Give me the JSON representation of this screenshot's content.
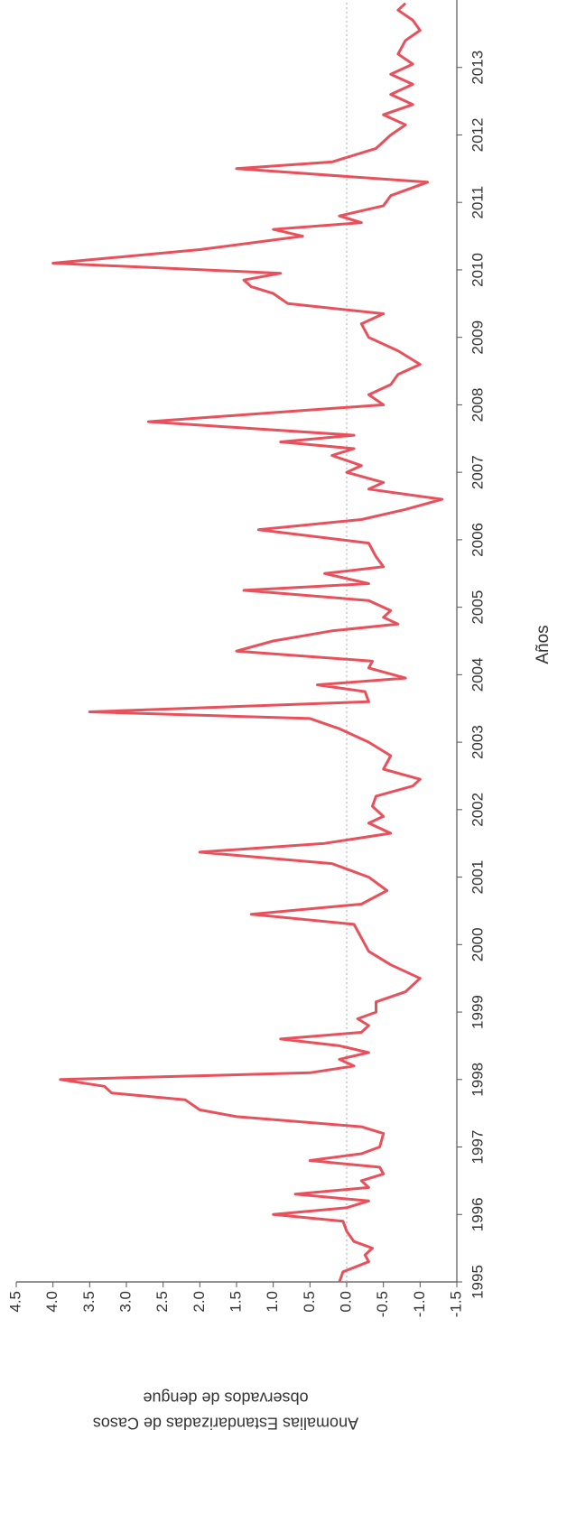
{
  "chart_data": {
    "type": "line",
    "xlabel": "Años",
    "ylabel": [
      "Anomalias Estandarizadas de Casos",
      "observados de dengue"
    ],
    "x": [
      1995.0,
      1995.15,
      1995.3,
      1995.4,
      1995.5,
      1995.6,
      1995.75,
      1995.9,
      1996.0,
      1996.1,
      1996.2,
      1996.3,
      1996.4,
      1996.5,
      1996.6,
      1996.7,
      1996.8,
      1996.9,
      1997.0,
      1997.2,
      1997.3,
      1997.45,
      1997.55,
      1997.7,
      1997.8,
      1997.9,
      1998.0,
      1998.1,
      1998.2,
      1998.3,
      1998.4,
      1998.5,
      1998.6,
      1998.7,
      1998.8,
      1998.9,
      1999.0,
      1999.15,
      1999.3,
      1999.5,
      1999.7,
      1999.9,
      2000.1,
      2000.3,
      2000.45,
      2000.6,
      2000.8,
      2001.0,
      2001.2,
      2001.37,
      2001.5,
      2001.65,
      2001.8,
      2001.9,
      2002.05,
      2002.2,
      2002.35,
      2002.45,
      2002.6,
      2002.8,
      2003.0,
      2003.2,
      2003.35,
      2003.45,
      2003.6,
      2003.75,
      2003.85,
      2003.95,
      2004.1,
      2004.2,
      2004.35,
      2004.5,
      2004.65,
      2004.75,
      2004.85,
      2004.95,
      2005.1,
      2005.25,
      2005.35,
      2005.5,
      2005.6,
      2005.75,
      2005.95,
      2006.15,
      2006.3,
      2006.45,
      2006.6,
      2006.75,
      2006.85,
      2007.0,
      2007.1,
      2007.25,
      2007.35,
      2007.45,
      2007.55,
      2007.75,
      2007.9,
      2008.0,
      2008.15,
      2008.3,
      2008.45,
      2008.6,
      2008.8,
      2009.0,
      2009.2,
      2009.35,
      2009.5,
      2009.65,
      2009.75,
      2009.85,
      2009.95,
      2010.1,
      2010.3,
      2010.5,
      2010.6,
      2010.7,
      2010.8,
      2010.95,
      2011.1,
      2011.3,
      2011.5,
      2011.6,
      2011.8,
      2012.0,
      2012.15,
      2012.3,
      2012.45,
      2012.6,
      2012.75,
      2012.9,
      2013.05,
      2013.2,
      2013.4,
      2013.55,
      2013.7,
      2013.85,
      2013.95
    ],
    "series": [
      {
        "color": "#e8505b",
        "values": [
          0.1,
          0.05,
          -0.3,
          -0.25,
          -0.35,
          -0.1,
          0.0,
          0.05,
          1.0,
          0.0,
          -0.3,
          0.7,
          -0.3,
          -0.2,
          -0.5,
          -0.45,
          0.5,
          -0.2,
          -0.45,
          -0.5,
          -0.2,
          1.5,
          2.0,
          2.2,
          3.2,
          3.3,
          3.9,
          0.5,
          -0.1,
          0.1,
          -0.3,
          0.1,
          0.9,
          -0.2,
          -0.3,
          -0.15,
          -0.4,
          -0.4,
          -0.8,
          -1.0,
          -0.6,
          -0.3,
          -0.2,
          -0.1,
          1.3,
          -0.2,
          -0.55,
          -0.3,
          0.2,
          2.0,
          0.3,
          -0.6,
          -0.3,
          -0.5,
          -0.35,
          -0.4,
          -0.9,
          -1.0,
          -0.5,
          -0.6,
          -0.3,
          0.1,
          0.5,
          3.5,
          -0.3,
          -0.25,
          0.4,
          -0.8,
          -0.3,
          -0.35,
          1.5,
          1.0,
          0.2,
          -0.7,
          -0.5,
          -0.6,
          -0.3,
          1.4,
          -0.3,
          0.3,
          -0.5,
          -0.4,
          -0.3,
          1.2,
          -0.2,
          -0.8,
          -1.3,
          -0.3,
          -0.5,
          0.0,
          -0.2,
          0.2,
          -0.1,
          0.9,
          -0.1,
          2.7,
          0.8,
          -0.5,
          -0.3,
          -0.6,
          -0.7,
          -1.0,
          -0.7,
          -0.3,
          -0.2,
          -0.5,
          0.8,
          1.0,
          1.3,
          1.4,
          0.9,
          4.0,
          2.0,
          0.6,
          1.0,
          -0.2,
          0.1,
          -0.5,
          -0.6,
          -1.1,
          1.5,
          0.2,
          -0.4,
          -0.6,
          -0.8,
          -0.5,
          -0.9,
          -0.6,
          -0.9,
          -0.6,
          -0.9,
          -0.7,
          -0.8,
          -1.0,
          -0.9,
          -0.7,
          -0.8
        ]
      }
    ],
    "xlim": [
      1995,
      2014
    ],
    "xticks": [
      1995,
      1996,
      1997,
      1998,
      1999,
      2000,
      2001,
      2002,
      2003,
      2004,
      2005,
      2006,
      2007,
      2008,
      2009,
      2010,
      2011,
      2012,
      2013
    ],
    "ylim": [
      -1.5,
      4.5
    ],
    "yticks": [
      -1.5,
      {
        "value": -1,
        "label": "-1.0"
      },
      -0.5,
      {
        "value": 0,
        "label": "0.0"
      },
      0.5,
      {
        "value": 1,
        "label": "1.0"
      },
      1.5,
      {
        "value": 2,
        "label": "2.0"
      },
      2.5,
      {
        "value": 3,
        "label": "3.0"
      },
      3.5,
      {
        "value": 4,
        "label": "4.0"
      },
      4.5
    ],
    "zero_line": true
  }
}
